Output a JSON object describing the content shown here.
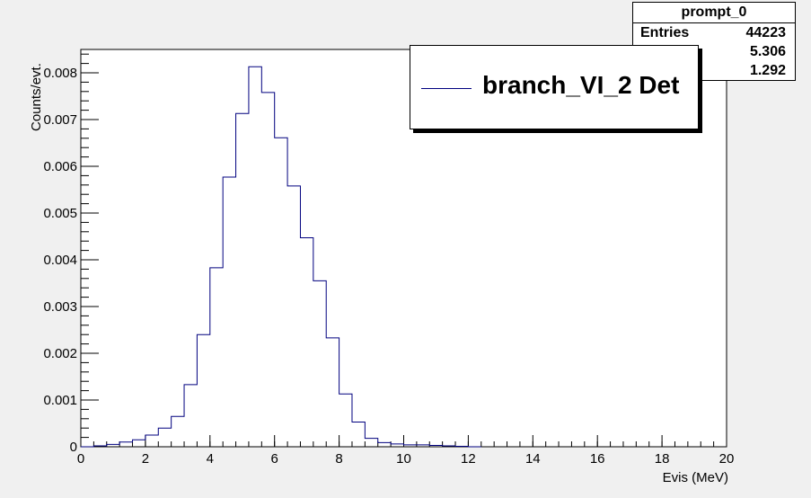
{
  "chart_data": {
    "type": "histogram",
    "title": "",
    "xlabel": "Evis (MeV)",
    "ylabel": "Counts/evt.",
    "xlim": [
      0,
      20
    ],
    "ylim": [
      0,
      0.0085
    ],
    "x_ticks": [
      "0",
      "2",
      "4",
      "6",
      "8",
      "10",
      "12",
      "14",
      "16",
      "18",
      "20"
    ],
    "y_ticks": [
      "0",
      "0.001",
      "0.002",
      "0.003",
      "0.004",
      "0.005",
      "0.006",
      "0.007",
      "0.008"
    ],
    "grid": false,
    "bin_width": 0.4,
    "series": [
      {
        "name": "branch_VI_2 Det",
        "color": "#00007f",
        "bin_start": 0.0,
        "values": [
          0.0,
          2e-05,
          5e-05,
          0.0001,
          0.00015,
          0.00025,
          0.0004,
          0.00065,
          0.00133,
          0.0024,
          0.00383,
          0.00577,
          0.00713,
          0.00813,
          0.00758,
          0.00661,
          0.00558,
          0.00447,
          0.00355,
          0.00233,
          0.00113,
          0.00053,
          0.00018,
          9e-05,
          6e-05,
          4e-05,
          4e-05,
          3e-05,
          2e-05,
          1e-05,
          0.0
        ]
      }
    ]
  },
  "stats_box": {
    "title": "prompt_0",
    "rows": [
      {
        "key": "Entries",
        "value": "44223"
      },
      {
        "key": "",
        "value": "5.306"
      },
      {
        "key": "",
        "value": "1.292"
      }
    ]
  },
  "legend": {
    "label": "branch_VI_2 Det"
  }
}
